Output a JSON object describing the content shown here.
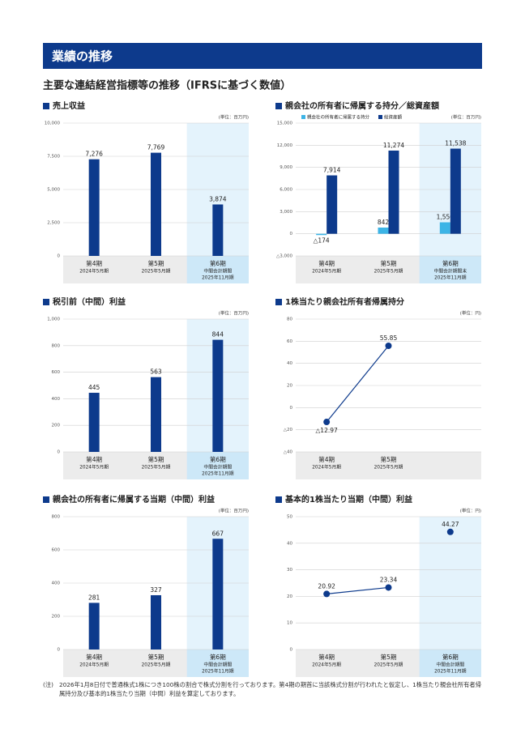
{
  "header": {
    "title": "業績の推移"
  },
  "section_title": "主要な連結経営指標等の推移（IFRSに基づく数値）",
  "chart_data": [
    {
      "type": "bar",
      "title": "売上収益",
      "unit": "(単位：百万円)",
      "categories": [
        [
          "第4期",
          "2024年5月期"
        ],
        [
          "第5期",
          "2025年5月期"
        ],
        [
          "第6期",
          "中間会計期間",
          "2025年11月期"
        ]
      ],
      "values": [
        7276,
        7769,
        3874
      ],
      "value_labels": [
        "7,276",
        "7,769",
        "3,874"
      ],
      "color": "#0d3a8c",
      "ylim": [
        0,
        10000
      ],
      "yticks": [
        0,
        {
          "value": 2500,
          "label": "2,500"
        },
        {
          "value": 5000,
          "label": "5,000"
        },
        {
          "value": 7500,
          "label": "7,500"
        },
        {
          "value": 10000,
          "label": "10,000"
        }
      ],
      "grid": true,
      "highlight": 2
    },
    {
      "type": "bar",
      "title": "親会社の所有者に帰属する持分／総資産額",
      "unit": "(単位：百万円)",
      "categories": [
        [
          "第4期",
          "2024年5月期"
        ],
        [
          "第5期",
          "2025年5月期"
        ],
        [
          "第6期",
          "中間会計期間末",
          "2025年11月期"
        ]
      ],
      "series": [
        {
          "name": "親会社の所有者に帰属する持分",
          "color": "#3cb4e6",
          "values": [
            -174,
            842,
            1550
          ],
          "value_labels": [
            "△174",
            "842",
            "1,550"
          ]
        },
        {
          "name": "総資産額",
          "color": "#0d3a8c",
          "values": [
            7914,
            11274,
            11538
          ],
          "value_labels": [
            "7,914",
            "11,274",
            "11,538"
          ]
        }
      ],
      "ylim": [
        -3000,
        15000
      ],
      "yticks": [
        {
          "value": -3000,
          "label": "△3,000"
        },
        0,
        {
          "value": 3000,
          "label": "3,000"
        },
        {
          "value": 6000,
          "label": "6,000"
        },
        {
          "value": 9000,
          "label": "9,000"
        },
        {
          "value": 12000,
          "label": "12,000"
        },
        {
          "value": 15000,
          "label": "15,000"
        }
      ],
      "grid": true,
      "highlight": 2,
      "legend": "top"
    },
    {
      "type": "bar",
      "title": "税引前（中間）利益",
      "unit": "(単位：百万円)",
      "categories": [
        [
          "第4期",
          "2024年5月期"
        ],
        [
          "第5期",
          "2025年5月期"
        ],
        [
          "第6期",
          "中間会計期間",
          "2025年11月期"
        ]
      ],
      "values": [
        445,
        563,
        844
      ],
      "color": "#0d3a8c",
      "ylim": [
        0,
        1000
      ],
      "yticks": [
        0,
        200,
        400,
        600,
        800,
        {
          "value": 1000,
          "label": "1,000"
        }
      ],
      "grid": true,
      "highlight": 2
    },
    {
      "type": "line",
      "title": "1株当たり親会社所有者帰属持分",
      "unit": "(単位：円)",
      "categories": [
        [
          "第4期",
          "2024年5月期"
        ],
        [
          "第5期",
          "2025年5月期"
        ]
      ],
      "values": [
        -12.97,
        55.85
      ],
      "value_labels": [
        "△12.97",
        "55.85"
      ],
      "color": "#0d3a8c",
      "ylim": [
        -40,
        80
      ],
      "yticks": [
        {
          "value": -40,
          "label": "△40"
        },
        {
          "value": -20,
          "label": "△20"
        },
        0,
        20,
        40,
        60,
        80
      ],
      "grid": true
    },
    {
      "type": "bar",
      "title": "親会社の所有者に帰属する当期（中間）利益",
      "unit": "(単位：百万円)",
      "categories": [
        [
          "第4期",
          "2024年5月期"
        ],
        [
          "第5期",
          "2025年5月期"
        ],
        [
          "第6期",
          "中間会計期間",
          "2025年11月期"
        ]
      ],
      "values": [
        281,
        327,
        667
      ],
      "color": "#0d3a8c",
      "ylim": [
        0,
        800
      ],
      "yticks": [
        0,
        200,
        400,
        600,
        800
      ],
      "grid": true,
      "highlight": 2
    },
    {
      "type": "line",
      "title": "基本的1株当たり当期（中間）利益",
      "unit": "(単位：円)",
      "categories": [
        [
          "第4期",
          "2024年5月期"
        ],
        [
          "第5期",
          "2025年5月期"
        ],
        [
          "第6期",
          "中間会計期間",
          "2025年11月期"
        ]
      ],
      "series": [
        {
          "color": "#0d3a8c",
          "values": [
            20.92,
            23.34,
            null
          ]
        },
        {
          "color": "#0d3a8c",
          "values": [
            null,
            null,
            44.27
          ]
        }
      ],
      "ylim": [
        0,
        50
      ],
      "yticks": [
        0,
        10,
        20,
        30,
        40,
        50
      ],
      "grid": true,
      "highlight": 2
    }
  ],
  "note": {
    "label": "(注)",
    "text": "2026年1月8日付で普通株式1株につき100株の割合で株式分割を行っております。第4期の期首に当該株式分割が行われたと仮定し、1株当たり親会社所有者帰属持分及び基本的1株当たり当期（中間）利益を算定しております。"
  }
}
